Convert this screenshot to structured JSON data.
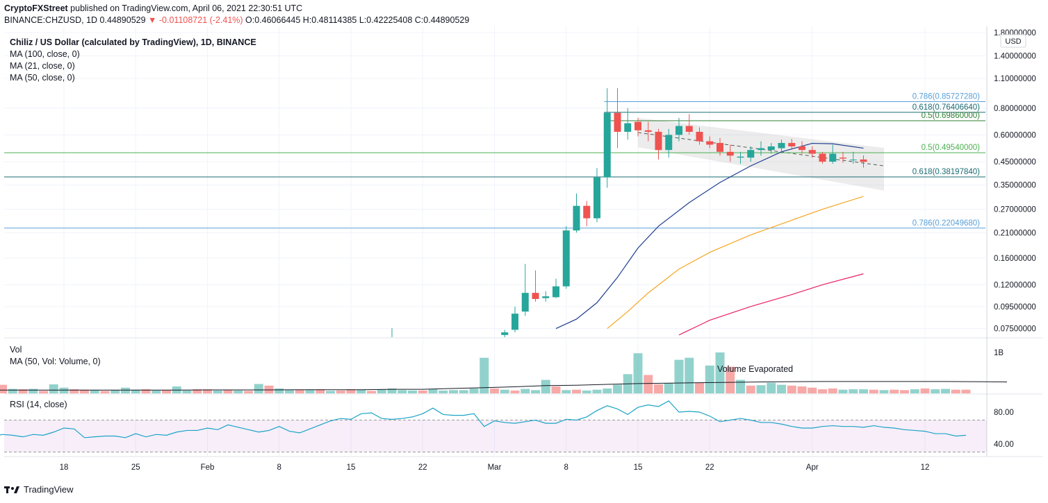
{
  "header": {
    "publisher": "CryptoFXStreet",
    "published_text": "published on TradingView.com, April 06, 2021 22:30:51 UTC",
    "symbol_line": "BINANCE:CHZUSD, 1D 0.44890529",
    "change": "-0.01108721 (-2.41%)",
    "ohlc": "O:0.46066445 H:0.48114385 L:0.42225408 C:0.44890529"
  },
  "footer": {
    "brand": "TradingView"
  },
  "chart_data": {
    "type": "candlestick",
    "title": "Chiliz / US Dollar (calculated by TradingView), 1D, BINANCE",
    "currency_label": "USD",
    "indicators": [
      "MA (100, close, 0)",
      "MA (21, close, 0)",
      "MA (50, close, 0)"
    ],
    "y_scale": "log",
    "price_ticks": [
      "1.80000000",
      "1.40000000",
      "1.10000000",
      "0.80000000",
      "0.60000000",
      "0.45000000",
      "0.35000000",
      "0.27000000",
      "0.21000000",
      "0.16000000",
      "0.12000000",
      "0.09500000",
      "0.07500000"
    ],
    "price_tick_values": [
      1.8,
      1.4,
      1.1,
      0.8,
      0.6,
      0.45,
      0.35,
      0.27,
      0.21,
      0.16,
      0.12,
      0.095,
      0.075
    ],
    "x_ticks": [
      "18",
      "25",
      "Feb",
      "8",
      "15",
      "22",
      "Mar",
      "8",
      "15",
      "22",
      "Apr",
      "12"
    ],
    "x_tick_dates": [
      "2021-01-18",
      "2021-01-25",
      "2021-02-01",
      "2021-02-08",
      "2021-02-15",
      "2021-02-22",
      "2021-03-01",
      "2021-03-08",
      "2021-03-15",
      "2021-03-22",
      "2021-04-01",
      "2021-04-12"
    ],
    "candles": [
      {
        "d": "2021-03-02",
        "o": 0.07,
        "h": 0.074,
        "l": 0.062,
        "c": 0.072
      },
      {
        "d": "2021-03-03",
        "o": 0.074,
        "h": 0.095,
        "l": 0.072,
        "c": 0.088
      },
      {
        "d": "2021-03-04",
        "o": 0.09,
        "h": 0.15,
        "l": 0.086,
        "c": 0.11
      },
      {
        "d": "2021-03-05",
        "o": 0.11,
        "h": 0.14,
        "l": 0.1,
        "c": 0.103
      },
      {
        "d": "2021-03-06",
        "o": 0.104,
        "h": 0.112,
        "l": 0.1,
        "c": 0.106
      },
      {
        "d": "2021-03-07",
        "o": 0.105,
        "h": 0.128,
        "l": 0.104,
        "c": 0.118
      },
      {
        "d": "2021-03-08",
        "o": 0.118,
        "h": 0.225,
        "l": 0.115,
        "c": 0.215
      },
      {
        "d": "2021-03-09",
        "o": 0.215,
        "h": 0.32,
        "l": 0.21,
        "c": 0.28
      },
      {
        "d": "2021-03-10",
        "o": 0.28,
        "h": 0.295,
        "l": 0.225,
        "c": 0.245
      },
      {
        "d": "2021-03-11",
        "o": 0.245,
        "h": 0.42,
        "l": 0.235,
        "c": 0.38
      },
      {
        "d": "2021-03-12",
        "o": 0.38,
        "h": 0.99,
        "l": 0.34,
        "c": 0.76
      },
      {
        "d": "2021-03-13",
        "o": 0.76,
        "h": 0.99,
        "l": 0.52,
        "c": 0.62
      },
      {
        "d": "2021-03-14",
        "o": 0.62,
        "h": 0.8,
        "l": 0.57,
        "c": 0.68
      },
      {
        "d": "2021-03-15",
        "o": 0.69,
        "h": 0.72,
        "l": 0.59,
        "c": 0.63
      },
      {
        "d": "2021-03-16",
        "o": 0.63,
        "h": 0.69,
        "l": 0.56,
        "c": 0.62
      },
      {
        "d": "2021-03-17",
        "o": 0.62,
        "h": 0.64,
        "l": 0.46,
        "c": 0.51
      },
      {
        "d": "2021-03-18",
        "o": 0.51,
        "h": 0.64,
        "l": 0.47,
        "c": 0.6
      },
      {
        "d": "2021-03-19",
        "o": 0.6,
        "h": 0.72,
        "l": 0.56,
        "c": 0.66
      },
      {
        "d": "2021-03-20",
        "o": 0.66,
        "h": 0.75,
        "l": 0.6,
        "c": 0.62
      },
      {
        "d": "2021-03-21",
        "o": 0.62,
        "h": 0.65,
        "l": 0.54,
        "c": 0.56
      },
      {
        "d": "2021-03-22",
        "o": 0.56,
        "h": 0.59,
        "l": 0.52,
        "c": 0.54
      },
      {
        "d": "2021-03-23",
        "o": 0.55,
        "h": 0.58,
        "l": 0.48,
        "c": 0.5
      },
      {
        "d": "2021-03-24",
        "o": 0.5,
        "h": 0.54,
        "l": 0.45,
        "c": 0.48
      },
      {
        "d": "2021-03-25",
        "o": 0.47,
        "h": 0.5,
        "l": 0.44,
        "c": 0.475
      },
      {
        "d": "2021-03-26",
        "o": 0.47,
        "h": 0.53,
        "l": 0.45,
        "c": 0.51
      },
      {
        "d": "2021-03-27",
        "o": 0.51,
        "h": 0.56,
        "l": 0.48,
        "c": 0.52
      },
      {
        "d": "2021-03-28",
        "o": 0.51,
        "h": 0.55,
        "l": 0.49,
        "c": 0.53
      },
      {
        "d": "2021-03-29",
        "o": 0.52,
        "h": 0.57,
        "l": 0.5,
        "c": 0.55
      },
      {
        "d": "2021-03-30",
        "o": 0.55,
        "h": 0.575,
        "l": 0.51,
        "c": 0.53
      },
      {
        "d": "2021-03-31",
        "o": 0.53,
        "h": 0.56,
        "l": 0.49,
        "c": 0.51
      },
      {
        "d": "2021-04-01",
        "o": 0.51,
        "h": 0.53,
        "l": 0.47,
        "c": 0.49
      },
      {
        "d": "2021-04-02",
        "o": 0.49,
        "h": 0.5,
        "l": 0.44,
        "c": 0.45
      },
      {
        "d": "2021-04-03",
        "o": 0.45,
        "h": 0.54,
        "l": 0.44,
        "c": 0.49
      },
      {
        "d": "2021-04-04",
        "o": 0.47,
        "h": 0.5,
        "l": 0.445,
        "c": 0.465
      },
      {
        "d": "2021-04-05",
        "o": 0.46,
        "h": 0.5,
        "l": 0.44,
        "c": 0.46
      },
      {
        "d": "2021-04-06",
        "o": 0.46066445,
        "h": 0.48114385,
        "l": 0.42225408,
        "c": 0.44890529
      }
    ],
    "moving_averages": [
      {
        "name": "MA (21, close, 0)",
        "color": "#1e3d8f",
        "points": [
          [
            "2021-03-07",
            0.075
          ],
          [
            "2021-03-09",
            0.083
          ],
          [
            "2021-03-11",
            0.099
          ],
          [
            "2021-03-13",
            0.13
          ],
          [
            "2021-03-15",
            0.178
          ],
          [
            "2021-03-17",
            0.225
          ],
          [
            "2021-03-20",
            0.29
          ],
          [
            "2021-03-23",
            0.36
          ],
          [
            "2021-03-26",
            0.43
          ],
          [
            "2021-03-29",
            0.5
          ],
          [
            "2021-04-01",
            0.548
          ],
          [
            "2021-04-03",
            0.545
          ],
          [
            "2021-04-06",
            0.52
          ]
        ]
      },
      {
        "name": "MA (50, close, 0)",
        "color": "#f5a623",
        "points": [
          [
            "2021-03-12",
            0.075
          ],
          [
            "2021-03-14",
            0.09
          ],
          [
            "2021-03-16",
            0.11
          ],
          [
            "2021-03-19",
            0.142
          ],
          [
            "2021-03-22",
            0.17
          ],
          [
            "2021-03-26",
            0.205
          ],
          [
            "2021-03-30",
            0.24
          ],
          [
            "2021-04-02",
            0.27
          ],
          [
            "2021-04-06",
            0.31
          ]
        ]
      },
      {
        "name": "MA (100, close, 0)",
        "color": "#e91e63",
        "points": [
          [
            "2021-03-19",
            0.07
          ],
          [
            "2021-03-22",
            0.082
          ],
          [
            "2021-03-26",
            0.095
          ],
          [
            "2021-03-30",
            0.108
          ],
          [
            "2021-04-02",
            0.12
          ],
          [
            "2021-04-06",
            0.135
          ]
        ]
      }
    ],
    "channel": {
      "upper": [
        [
          "2021-03-15",
          0.72
        ],
        [
          "2021-04-08",
          0.522
        ]
      ],
      "lower": [
        [
          "2021-03-15",
          0.525
        ],
        [
          "2021-04-08",
          0.33
        ]
      ],
      "mid": [
        [
          "2021-03-15",
          0.615
        ],
        [
          "2021-04-08",
          0.43
        ]
      ]
    },
    "fib_levels": [
      {
        "label": "0.786(0.85727280)",
        "value": 0.8572728,
        "color": "#5aa0d8",
        "start": "2021-03-10"
      },
      {
        "label": "0.618(0.76406640)",
        "value": 0.7640664,
        "color": "#1a6b73",
        "start": "2021-03-10"
      },
      {
        "label": "0.5(0.69860000)",
        "value": 0.6986,
        "color": "#2e7d32",
        "start": "2021-03-10"
      },
      {
        "label": "0.5(0.49540000)",
        "value": 0.4954,
        "color": "#4caf50",
        "start": "full"
      },
      {
        "label": "0.618(0.38197840)",
        "value": 0.3819784,
        "color": "#1a6b73",
        "start": "full"
      },
      {
        "label": "0.786(0.22049680)",
        "value": 0.2204968,
        "color": "#5aa0d8",
        "start": "full"
      }
    ],
    "volume": {
      "title": "Vol",
      "ma_label": "MA (50, Vol: Volume, 0)",
      "tick": "1B",
      "tick_value": 1.0,
      "annotation": "Volume Evaporated",
      "start": "2021-01-11",
      "bars": [
        0.05,
        0.21,
        0.11,
        0.1,
        0.11,
        0.06,
        0.22,
        0.14,
        0.1,
        0.09,
        0.08,
        0.06,
        0.08,
        0.14,
        0.09,
        0.1,
        0.07,
        0.08,
        0.17,
        0.07,
        0.1,
        0.1,
        0.07,
        0.08,
        0.07,
        0.06,
        0.23,
        0.19,
        0.12,
        0.08,
        0.09,
        0.09,
        0.1,
        0.06,
        0.07,
        0.1,
        0.09,
        0.06,
        0.1,
        0.12,
        0.08,
        0.07,
        0.07,
        0.1,
        0.07,
        0.08,
        0.08,
        0.12,
        0.87,
        0.12,
        0.09,
        0.07,
        0.11,
        0.08,
        0.33,
        0.17,
        0.08,
        0.09,
        0.07,
        0.09,
        0.12,
        0.21,
        0.47,
        0.98,
        0.45,
        0.22,
        0.25,
        0.82,
        0.87,
        0.26,
        0.68,
        1.0,
        0.65,
        0.33,
        0.19,
        0.2,
        0.26,
        0.21,
        0.19,
        0.17,
        0.14,
        0.1,
        0.12,
        0.09,
        0.1,
        0.1,
        0.09,
        0.08,
        0.09,
        0.08,
        0.1,
        0.12,
        0.1,
        0.11,
        0.09,
        0.09
      ],
      "up": [
        1,
        0,
        1,
        0,
        1,
        0,
        1,
        1,
        0,
        0,
        1,
        0,
        1,
        1,
        1,
        0,
        1,
        0,
        1,
        1,
        0,
        0,
        1,
        0,
        1,
        0,
        1,
        0,
        1,
        1,
        0,
        1,
        0,
        1,
        0,
        0,
        1,
        0,
        1,
        1,
        1,
        1,
        0,
        1,
        1,
        1,
        1,
        1,
        1,
        0,
        1,
        0,
        1,
        1,
        1,
        0,
        1,
        0,
        1,
        1,
        1,
        1,
        1,
        1,
        0,
        0,
        1,
        1,
        1,
        0,
        1,
        1,
        0,
        1,
        0,
        1,
        1,
        1,
        0,
        0,
        0,
        0,
        0,
        1,
        1,
        1,
        0,
        1,
        0,
        0,
        1,
        0,
        1,
        1,
        0,
        0
      ],
      "ma": [
        0.08,
        0.08,
        0.08,
        0.08,
        0.08,
        0.08,
        0.08,
        0.085,
        0.085,
        0.085,
        0.09,
        0.09,
        0.09,
        0.1,
        0.1,
        0.12,
        0.14,
        0.16,
        0.19,
        0.2,
        0.22,
        0.24,
        0.25,
        0.26,
        0.27,
        0.28,
        0.285,
        0.29,
        0.29,
        0.29,
        0.29,
        0.29,
        0.285,
        0.28
      ]
    },
    "rsi": {
      "title": "RSI (14, close)",
      "ticks": [
        "80.00",
        "40.00"
      ],
      "tick_values": [
        80,
        40
      ],
      "band": [
        30,
        70
      ],
      "values": [
        49,
        52,
        51,
        49,
        52,
        51,
        55,
        60,
        59,
        48,
        49,
        50,
        50,
        48,
        53,
        49,
        52,
        51,
        55,
        57,
        57,
        60,
        58,
        64,
        61,
        58,
        55,
        57,
        62,
        56,
        54,
        59,
        64,
        69,
        72,
        71,
        78,
        79,
        72,
        71,
        72,
        74,
        78,
        85,
        77,
        76,
        76,
        78,
        62,
        69,
        67,
        66,
        68,
        70,
        66,
        66,
        71,
        70,
        74,
        82,
        88,
        84,
        77,
        86,
        89,
        87,
        94,
        80,
        81,
        80,
        75,
        68,
        70,
        72,
        70,
        67,
        67,
        65,
        62,
        60,
        60,
        62,
        63,
        62,
        62,
        61,
        63,
        61,
        60,
        58,
        57,
        56,
        53,
        53,
        50,
        51
      ]
    }
  }
}
